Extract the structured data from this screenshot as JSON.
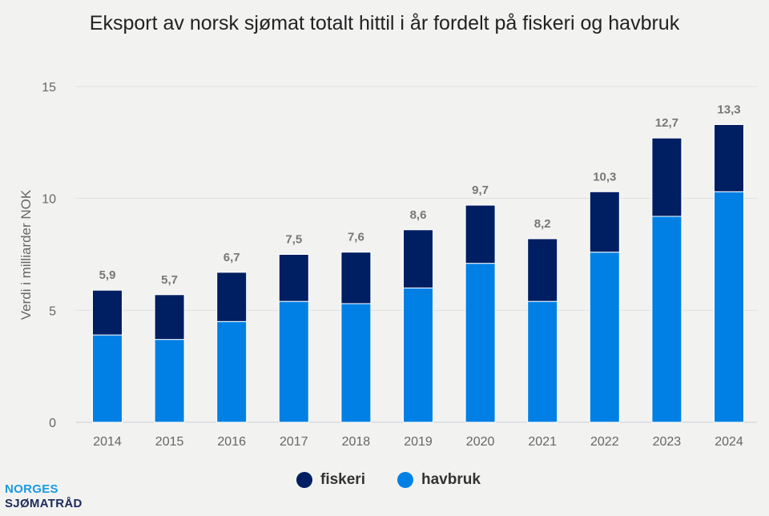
{
  "chart_data": {
    "type": "bar",
    "stacked": true,
    "title": "Eksport av norsk sjømat totalt hittil i år fordelt på fiskeri og havbruk",
    "xlabel": "",
    "ylabel": "Verdi i milliarder NOK",
    "ylim": [
      0,
      15
    ],
    "yticks": [
      0,
      5,
      10,
      15
    ],
    "grid": true,
    "legend_position": "bottom",
    "categories": [
      "2014",
      "2015",
      "2016",
      "2017",
      "2018",
      "2019",
      "2020",
      "2021",
      "2022",
      "2023",
      "2024"
    ],
    "series": [
      {
        "name": "havbruk",
        "color": "#0080e5",
        "values": [
          3.9,
          3.7,
          4.5,
          5.4,
          5.3,
          6.0,
          7.1,
          5.4,
          7.6,
          9.2,
          10.3
        ]
      },
      {
        "name": "fiskeri",
        "color": "#001e62",
        "values": [
          2.0,
          2.0,
          2.2,
          2.1,
          2.3,
          2.6,
          2.6,
          2.8,
          2.7,
          3.5,
          3.0
        ]
      }
    ],
    "totals": [
      5.9,
      5.7,
      6.7,
      7.5,
      7.6,
      8.6,
      9.7,
      8.2,
      10.3,
      12.7,
      13.3
    ],
    "total_labels": [
      "5,9",
      "5,7",
      "6,7",
      "7,5",
      "7,6",
      "8,6",
      "9,7",
      "8,2",
      "10,3",
      "12,7",
      "13,3"
    ]
  },
  "legend": {
    "fiskeri": "fiskeri",
    "havbruk": "havbruk"
  },
  "logo": {
    "line1": "NORGES",
    "line2": "SJØMATRÅD"
  }
}
